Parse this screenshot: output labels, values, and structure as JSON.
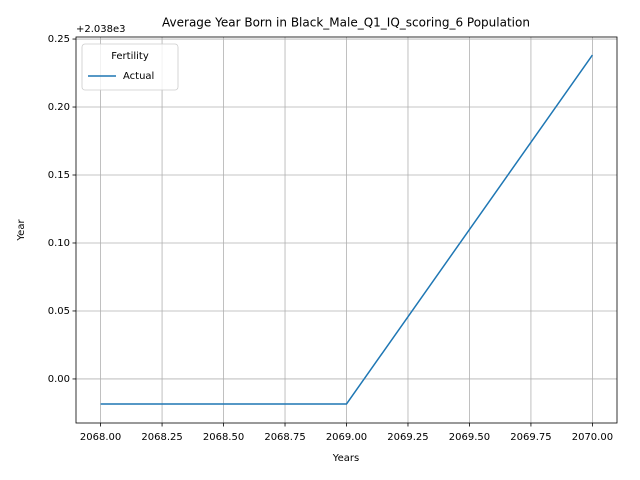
{
  "chart_data": {
    "type": "line",
    "title": "Average Year Born in Black_Male_Q1_IQ_scoring_6 Population",
    "xlabel": "Years",
    "ylabel": "Year",
    "y_offset_text": "+2.038e3",
    "x": [
      2068,
      2069,
      2070
    ],
    "series": [
      {
        "name": "Actual",
        "color": "#1f77b4",
        "values": [
          -0.0184,
          -0.0184,
          0.2382
        ]
      }
    ],
    "xlim": [
      2067.9,
      2070.1
    ],
    "xticks": [
      {
        "value": 2068,
        "label": "2068.00"
      },
      {
        "value": 2068.25,
        "label": "2068.25"
      },
      {
        "value": 2068.5,
        "label": "2068.50"
      },
      {
        "value": 2068.75,
        "label": "2068.75"
      },
      {
        "value": 2069,
        "label": "2069.00"
      },
      {
        "value": 2069.25,
        "label": "2069.25"
      },
      {
        "value": 2069.5,
        "label": "2069.50"
      },
      {
        "value": 2069.75,
        "label": "2069.75"
      },
      {
        "value": 2070,
        "label": "2070.00"
      }
    ],
    "ylim": [
      -0.0324,
      0.2515
    ],
    "yticks": [
      {
        "value": 0,
        "label": "0.00"
      },
      0.05,
      {
        "value": 0.1,
        "label": "0.10"
      },
      0.15,
      {
        "value": 0.2,
        "label": "0.20"
      },
      0.25
    ],
    "grid": true,
    "legend_title": "Fertility",
    "legend_position": "upper left"
  }
}
